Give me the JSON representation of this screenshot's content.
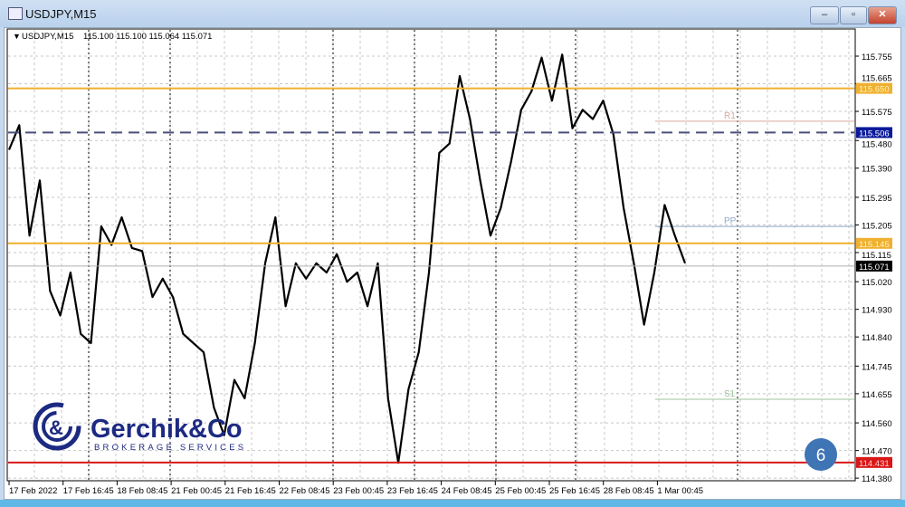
{
  "window": {
    "title": "USDJPY,M15",
    "minimize": "–",
    "maximize": "▫",
    "close": "✕"
  },
  "chart_header": {
    "symbol": "USDJPY,M15",
    "ohlc": "115.100 115.100 115.064 115.071"
  },
  "logo": {
    "name": "Gerchik&Co",
    "tagline": "BROKERAGE SERVICES"
  },
  "badge": {
    "label": "6",
    "color": "#3f74b5"
  },
  "chart_data": {
    "type": "line",
    "symbol": "USDJPY",
    "timeframe": "M15",
    "ylim": [
      114.36,
      115.845
    ],
    "y_ticks": [
      "115.755",
      "115.665",
      "115.575",
      "115.480",
      "115.390",
      "115.295",
      "115.205",
      "115.115",
      "115.020",
      "114.930",
      "114.840",
      "114.745",
      "114.655",
      "114.560",
      "114.470",
      "114.380"
    ],
    "x_ticks": [
      "17 Feb 2022",
      "17 Feb 16:45",
      "18 Feb 08:45",
      "21 Feb 00:45",
      "21 Feb 16:45",
      "22 Feb 08:45",
      "23 Feb 00:45",
      "23 Feb 16:45",
      "24 Feb 08:45",
      "25 Feb 00:45",
      "25 Feb 16:45",
      "28 Feb 08:45",
      "1 Mar 00:45"
    ],
    "close_prices": [
      115.45,
      115.53,
      115.17,
      115.35,
      114.99,
      114.91,
      115.05,
      114.85,
      114.82,
      115.2,
      115.14,
      115.23,
      115.13,
      115.12,
      114.97,
      115.03,
      114.97,
      114.85,
      114.82,
      114.79,
      114.61,
      114.52,
      114.7,
      114.64,
      114.82,
      115.08,
      115.23,
      114.94,
      115.08,
      115.03,
      115.08,
      115.05,
      115.11,
      115.02,
      115.05,
      114.94,
      115.08,
      114.64,
      114.43,
      114.67,
      114.79,
      115.05,
      115.44,
      115.47,
      115.69,
      115.55,
      115.35,
      115.17,
      115.26,
      115.41,
      115.58,
      115.64,
      115.75,
      115.61,
      115.76,
      115.52,
      115.58,
      115.55,
      115.61,
      115.5,
      115.26,
      115.08,
      114.88,
      115.05,
      115.27,
      115.17,
      115.08
    ],
    "price_tags": [
      {
        "label": "115.650",
        "value": 115.65,
        "color": "#f0b030",
        "text_color": "#fff3c0",
        "style": "solid"
      },
      {
        "label": "115.506",
        "value": 115.506,
        "color": "#0a1a9a",
        "line_color": "#4a4f7a",
        "text_color": "#ffffff",
        "style": "dashed"
      },
      {
        "label": "115.145",
        "value": 115.145,
        "color": "#f0b030",
        "text_color": "#fff3c0",
        "style": "solid"
      },
      {
        "label": "115.071",
        "value": 115.071,
        "color": "#000000",
        "line_color": "#b0b0b0",
        "text_color": "#ffffff",
        "style": "thin"
      },
      {
        "label": "114.431",
        "value": 114.431,
        "color": "#d81818",
        "text_color": "#ffd0d0",
        "style": "solid"
      }
    ],
    "pivots": [
      {
        "label": "R1",
        "value": 115.543,
        "color": "#d9a9a0"
      },
      {
        "label": "PP",
        "value": 115.2,
        "color": "#8fa9c9"
      },
      {
        "label": "S1",
        "value": 114.637,
        "color": "#9cc49c"
      }
    ]
  }
}
